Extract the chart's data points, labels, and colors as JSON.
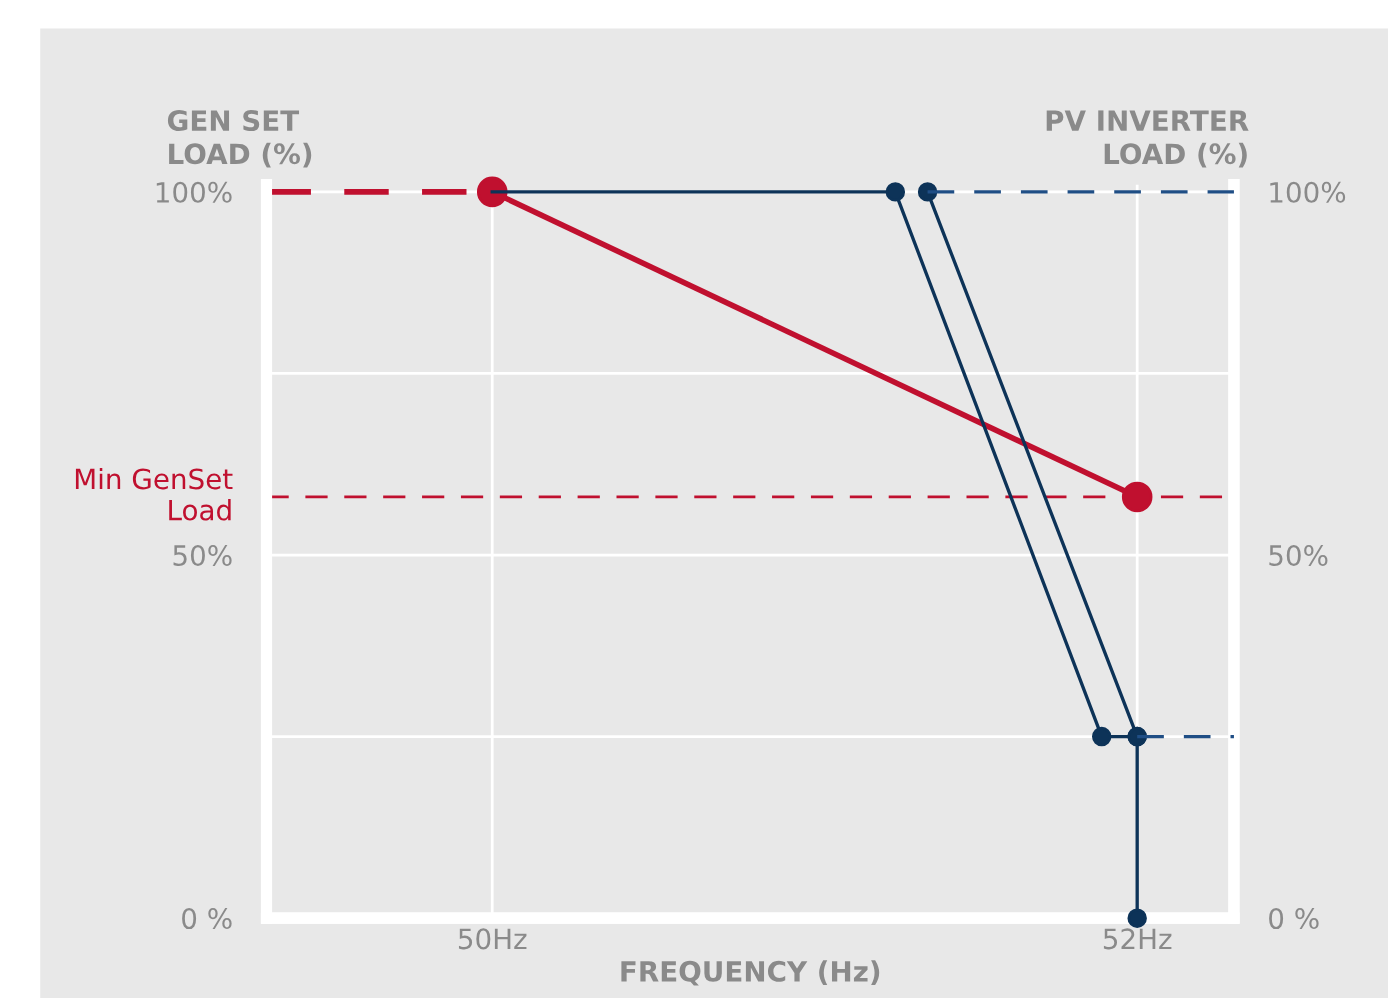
{
  "chart_data": {
    "type": "line",
    "xlabel": "FREQUENCY (Hz)",
    "ylabel": "GEN SET\nLOAD (%)",
    "y2label": "PV INVERTER\nLOAD (%)",
    "xlim": [
      49.3,
      52.3
    ],
    "xticks": [
      {
        "value": 50,
        "label": "50Hz"
      },
      {
        "value": 52,
        "label": "52Hz"
      }
    ],
    "ylim": [
      0,
      101
    ],
    "yticks": [
      {
        "value": 0,
        "label": "0 %"
      },
      {
        "value": 25,
        "label": null
      },
      {
        "value": 50,
        "label": "50%"
      },
      {
        "value": 75,
        "label": null
      },
      {
        "value": 100,
        "label": "100%"
      }
    ],
    "y2lim": [
      0,
      101
    ],
    "y2ticks": [
      {
        "value": 0,
        "label": "0 %"
      },
      {
        "value": 25,
        "label": null
      },
      {
        "value": 50,
        "label": "50%"
      },
      {
        "value": 75,
        "label": null
      },
      {
        "value": 100,
        "label": "100%"
      }
    ],
    "grid": true,
    "ref_lines": [
      {
        "axis": "y",
        "value": 58,
        "label": "Min GenSet\nLoad",
        "color": "#c0102f",
        "line_style": "dashed"
      }
    ],
    "series": [
      {
        "color": "#c0102f",
        "x": [
          49.3,
          50
        ],
        "values": [
          100,
          100
        ],
        "line_style": "dashed"
      },
      {
        "color": "#c0102f",
        "x": [
          50,
          52
        ],
        "values": [
          100,
          58
        ],
        "marker": "circle"
      },
      {
        "color": "#0d3358",
        "x": [
          50,
          51.25
        ],
        "values": [
          100,
          100
        ]
      },
      {
        "color": "#0d3358",
        "x": [
          51.25,
          51.89,
          52
        ],
        "values": [
          100,
          25,
          25
        ],
        "marker": "circle",
        "axis": "y2"
      },
      {
        "color": "#0d3358",
        "x": [
          51.35,
          52,
          52
        ],
        "values": [
          100,
          25,
          0
        ],
        "marker": "circle",
        "axis": "y2"
      },
      {
        "color": "#1f4e85",
        "x": [
          51.35,
          52.3
        ],
        "values": [
          100,
          100
        ],
        "line_style": "dashed",
        "marker": "none",
        "axis": "y2"
      },
      {
        "color": "#1f4e85",
        "x": [
          52,
          52.3
        ],
        "values": [
          25,
          25
        ],
        "line_style": "dashed",
        "marker": "none",
        "axis": "y2"
      }
    ]
  }
}
